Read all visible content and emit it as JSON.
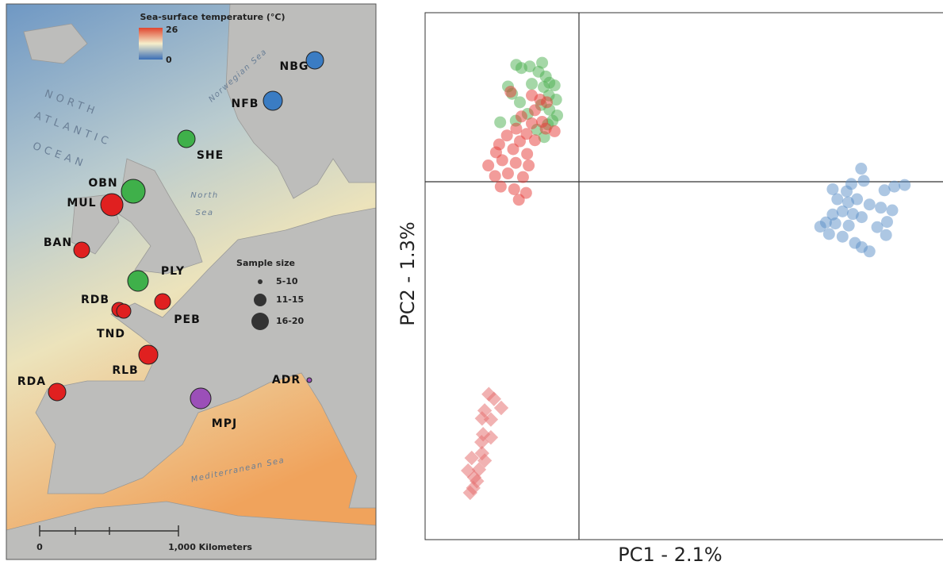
{
  "map": {
    "colorbar": {
      "title": "Sea-surface temperature (°C)",
      "max": "26",
      "min": "0"
    },
    "sites": [
      {
        "label": "NBG",
        "color": "#3a7cc3"
      },
      {
        "label": "NFB",
        "color": "#3a7cc3"
      },
      {
        "label": "SHE",
        "color": "#3fb04a"
      },
      {
        "label": "OBN",
        "color": "#3fb04a"
      },
      {
        "label": "MUL",
        "color": "#e02020"
      },
      {
        "label": "BAN",
        "color": "#e02020"
      },
      {
        "label": "PLY",
        "color": "#3fb04a"
      },
      {
        "label": "RDB",
        "color": "#e02020"
      },
      {
        "label": "TND",
        "color": "#e02020"
      },
      {
        "label": "PEB",
        "color": "#e02020"
      },
      {
        "label": "RLB",
        "color": "#e02020"
      },
      {
        "label": "RDA",
        "color": "#e02020"
      },
      {
        "label": "MPJ",
        "color": "#9b4fb8"
      },
      {
        "label": "ADR",
        "color": "#9b4fb8"
      }
    ],
    "ocean_labels": [
      "NORTH",
      "ATLANTIC",
      "OCEAN"
    ],
    "sea_labels": [
      "Norwegian Sea",
      "North",
      "Sea",
      "Mediterranean Sea"
    ],
    "sample_size": {
      "title": "Sample size",
      "classes": [
        "5-10",
        "11-15",
        "16-20"
      ]
    },
    "scale_bar": [
      "0",
      "1,000 Kilometers"
    ]
  },
  "chart_data": {
    "type": "scatter",
    "xlabel": "PC1 - 2.1%",
    "ylabel": "PC2 - 1.3%",
    "xlim": [
      0,
      100
    ],
    "ylim": [
      0,
      100
    ],
    "series": [
      {
        "color": "#4caf50",
        "marker": "circle",
        "x": [
          17.6,
          18.6,
          20.2,
          22.6,
          21.9,
          23.3,
          24.0,
          22.9,
          25.0,
          23.9,
          25.3,
          24.0,
          22.4,
          25.5,
          23.7,
          16.8,
          14.5,
          17.5,
          19.8,
          20.6,
          21.6,
          23.0,
          18.3,
          24.6,
          16.0
        ],
        "y": [
          90.1,
          89.5,
          89.8,
          90.5,
          88.8,
          87.9,
          86.7,
          85.9,
          86.2,
          84.3,
          83.5,
          81.6,
          82.5,
          80.5,
          78.8,
          84.6,
          79.2,
          79.5,
          80.8,
          86.5,
          77.8,
          76.4,
          83.0,
          79.5,
          86.0
        ]
      },
      {
        "color": "#e53935",
        "marker": "circle",
        "x": [
          16.5,
          20.6,
          22.2,
          23.5,
          21.2,
          18.6,
          20.6,
          22.6,
          17.6,
          19.6,
          15.8,
          18.3,
          21.2,
          14.3,
          17.0,
          19.7,
          12.2,
          14.9,
          17.5,
          20.0,
          13.5,
          16.0,
          18.9,
          14.6,
          17.2,
          19.5,
          18.1,
          23.3,
          25.0,
          13.7
        ],
        "y": [
          85.0,
          84.3,
          83.5,
          83.0,
          81.5,
          80.3,
          79.0,
          79.3,
          78.0,
          77.0,
          76.7,
          75.6,
          75.8,
          75.0,
          74.1,
          73.2,
          71.0,
          72.0,
          71.5,
          71.0,
          69.0,
          69.5,
          68.8,
          67.0,
          66.5,
          65.8,
          64.5,
          78.0,
          77.5,
          73.5
        ]
      },
      {
        "color": "#e57373",
        "marker": "diamond",
        "x": [
          12.3,
          13.3,
          14.7,
          11.5,
          12.7,
          11.2,
          12.7,
          10.9,
          11.0,
          9.0,
          10.4,
          8.3,
          10.0,
          9.3,
          8.7,
          11.0,
          11.5,
          9.5
        ],
        "y": [
          27.6,
          26.7,
          25.0,
          24.5,
          22.8,
          20.0,
          19.4,
          18.5,
          16.4,
          15.5,
          13.3,
          13.1,
          11.1,
          9.8,
          8.9,
          23.0,
          15.0,
          11.8
        ]
      },
      {
        "color": "#5b8fc8",
        "marker": "circle",
        "x": [
          84.2,
          84.7,
          78.7,
          81.4,
          82.3,
          90.6,
          92.6,
          88.7,
          79.6,
          81.7,
          83.4,
          85.8,
          88.0,
          90.2,
          78.7,
          80.6,
          82.6,
          84.3,
          77.4,
          79.2,
          81.8,
          87.3,
          89.2,
          76.3,
          78.0,
          80.6,
          83.0,
          89.0,
          84.3,
          85.8
        ],
        "y": [
          70.4,
          68.1,
          66.5,
          66.1,
          67.5,
          67.0,
          67.3,
          66.3,
          64.6,
          64.0,
          64.6,
          63.6,
          63.0,
          62.5,
          61.7,
          62.3,
          61.8,
          61.2,
          60.2,
          60.0,
          59.6,
          59.3,
          60.3,
          59.4,
          58.0,
          57.5,
          56.3,
          57.8,
          55.5,
          54.7
        ]
      }
    ]
  }
}
